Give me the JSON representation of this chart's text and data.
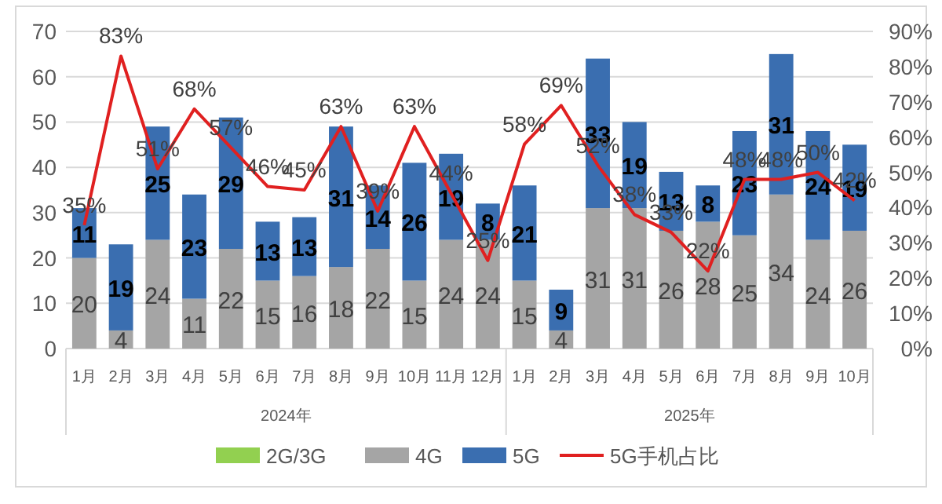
{
  "chart_data": {
    "type": "bar",
    "stacked": true,
    "categories": [
      "1月",
      "2月",
      "3月",
      "4月",
      "5月",
      "6月",
      "7月",
      "8月",
      "9月",
      "10月",
      "11月",
      "12月",
      "1月",
      "2月",
      "3月",
      "4月",
      "5月",
      "6月",
      "7月",
      "8月",
      "9月",
      "10月"
    ],
    "series": [
      {
        "name": "2G/3G",
        "color": "#92d050",
        "values": [
          0,
          0,
          0,
          0,
          0,
          0,
          0,
          0,
          0,
          0,
          0,
          0,
          0,
          0,
          0,
          0,
          0,
          0,
          0,
          0,
          0,
          0
        ]
      },
      {
        "name": "4G",
        "color": "#a5a5a5",
        "values": [
          20,
          4,
          24,
          11,
          22,
          15,
          16,
          18,
          22,
          15,
          24,
          24,
          15,
          4,
          31,
          31,
          26,
          28,
          25,
          34,
          24,
          26
        ],
        "value_labels": [
          "20",
          "4",
          "24",
          "11",
          "22",
          "15",
          "16",
          "18",
          "22",
          "15",
          "24",
          "24",
          "15",
          "4",
          "31",
          "31",
          "26",
          "28",
          "25",
          "34",
          "24",
          "26"
        ]
      },
      {
        "name": "5G",
        "color": "#3a6eb0",
        "values": [
          11,
          19,
          25,
          23,
          29,
          13,
          13,
          31,
          14,
          26,
          19,
          8,
          21,
          9,
          33,
          19,
          13,
          8,
          23,
          31,
          24,
          19
        ],
        "value_labels": [
          "11",
          "19",
          "25",
          "23",
          "29",
          "13",
          "13",
          "31",
          "14",
          "26",
          "19",
          "8",
          "21",
          "9",
          "33",
          "19",
          "13",
          "8",
          "23",
          "31",
          "24",
          "19"
        ]
      },
      {
        "name": "5G手机占比",
        "type": "line",
        "axis": "y2",
        "color": "#e02020",
        "values": [
          35,
          83,
          51,
          68,
          57,
          46,
          45,
          63,
          39,
          63,
          44,
          25,
          58,
          69,
          52,
          38,
          33,
          22,
          48,
          48,
          50,
          42
        ],
        "value_labels": [
          "35%",
          "83%",
          "51%",
          "68%",
          "57%",
          "46%",
          "45%",
          "63%",
          "39%",
          "63%",
          "44%",
          "25%",
          "58%",
          "69%",
          "52%",
          "38%",
          "33%",
          "22%",
          "48%",
          "48%",
          "50%",
          "42%"
        ]
      }
    ],
    "ylim": [
      0,
      70
    ],
    "yticks": [
      0,
      10,
      20,
      30,
      40,
      50,
      60,
      70
    ],
    "y2lim": [
      0,
      90
    ],
    "y2ticks": [
      {
        "value": 0,
        "label": "0%"
      },
      {
        "value": 10,
        "label": "10%"
      },
      {
        "value": 20,
        "label": "20%"
      },
      {
        "value": 30,
        "label": "30%"
      },
      {
        "value": 40,
        "label": "40%"
      },
      {
        "value": 50,
        "label": "50%"
      },
      {
        "value": 60,
        "label": "60%"
      },
      {
        "value": 70,
        "label": "70%"
      },
      {
        "value": 80,
        "label": "80%"
      },
      {
        "value": 90,
        "label": "90%"
      }
    ],
    "annotations": [
      "2024年",
      "2025年"
    ],
    "grid": "y",
    "legend": "bottom",
    "marker": "none"
  }
}
